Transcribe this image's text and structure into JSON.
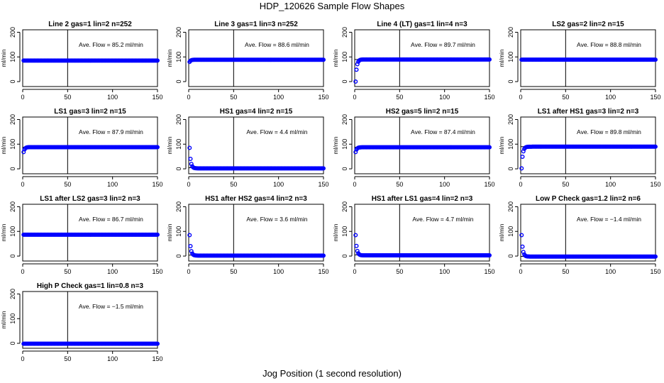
{
  "figure": {
    "title": "HDP_120626  Sample Flow Shapes",
    "xlabel": "Jog Position (1 second resolution)",
    "point_color": "#0000ff"
  },
  "chart_data": [
    {
      "type": "scatter",
      "title": "Line 2 gas=1 lin=2 n=252",
      "annotation": "Ave. Flow =  85.2  ml/min",
      "ylabel": "ml/min",
      "xlim": [
        0,
        150
      ],
      "ylim": [
        -20,
        210
      ],
      "xticks": [
        0,
        50,
        100,
        150
      ],
      "yticks": [
        0,
        100,
        200
      ],
      "vline": 50,
      "hline": 85.2,
      "shape": "flat",
      "level": 85.2,
      "start": 85.2
    },
    {
      "type": "scatter",
      "title": "Line 3 gas=1 lin=3 n=252",
      "annotation": "Ave. Flow =  88.6  ml/min",
      "ylabel": "ml/min",
      "xlim": [
        0,
        150
      ],
      "ylim": [
        -20,
        210
      ],
      "xticks": [
        0,
        50,
        100,
        150
      ],
      "yticks": [
        0,
        100,
        200
      ],
      "vline": 50,
      "hline": 88.6,
      "shape": "rise",
      "level": 88.6,
      "start": 80
    },
    {
      "type": "scatter",
      "title": "Line 4 (LT) gas=1 lin=4 n=3",
      "annotation": "Ave. Flow =  89.7  ml/min",
      "ylabel": "ml/min",
      "xlim": [
        0,
        150
      ],
      "ylim": [
        -20,
        210
      ],
      "xticks": [
        0,
        50,
        100,
        150
      ],
      "yticks": [
        0,
        100,
        200
      ],
      "vline": 50,
      "hline": 89.7,
      "shape": "rise",
      "level": 89.7,
      "start": 0
    },
    {
      "type": "scatter",
      "title": "LS2 gas=2 lin=2 n=15",
      "annotation": "Ave. Flow =  88.8  ml/min",
      "ylabel": "ml/min",
      "xlim": [
        0,
        150
      ],
      "ylim": [
        -20,
        210
      ],
      "xticks": [
        0,
        50,
        100,
        150
      ],
      "yticks": [
        0,
        100,
        200
      ],
      "vline": 50,
      "hline": 88.8,
      "shape": "flat",
      "level": 88.8,
      "start": 88.8
    },
    {
      "type": "scatter",
      "title": "LS1 gas=3 lin=2 n=15",
      "annotation": "Ave. Flow =  87.9  ml/min",
      "ylabel": "ml/min",
      "xlim": [
        0,
        150
      ],
      "ylim": [
        -20,
        210
      ],
      "xticks": [
        0,
        50,
        100,
        150
      ],
      "yticks": [
        0,
        100,
        200
      ],
      "vline": 50,
      "hline": 87.9,
      "shape": "rise",
      "level": 87.9,
      "start": 68
    },
    {
      "type": "scatter",
      "title": "HS1 gas=4 lin=2 n=15",
      "annotation": "Ave. Flow =  4.4  ml/min",
      "ylabel": "ml/min",
      "xlim": [
        0,
        150
      ],
      "ylim": [
        -20,
        210
      ],
      "xticks": [
        0,
        50,
        100,
        150
      ],
      "yticks": [
        0,
        100,
        200
      ],
      "vline": 50,
      "hline": 4.4,
      "shape": "decay",
      "level": 2,
      "start": 85
    },
    {
      "type": "scatter",
      "title": "HS2 gas=5 lin=2 n=15",
      "annotation": "Ave. Flow =  87.4  ml/min",
      "ylabel": "ml/min",
      "xlim": [
        0,
        150
      ],
      "ylim": [
        -20,
        210
      ],
      "xticks": [
        0,
        50,
        100,
        150
      ],
      "yticks": [
        0,
        100,
        200
      ],
      "vline": 50,
      "hline": 87.4,
      "shape": "rise",
      "level": 87.4,
      "start": 68
    },
    {
      "type": "scatter",
      "title": "LS1 after HS1 gas=3 lin=2 n=3",
      "annotation": "Ave. Flow =  89.8  ml/min",
      "ylabel": "ml/min",
      "xlim": [
        0,
        150
      ],
      "ylim": [
        -20,
        210
      ],
      "xticks": [
        0,
        50,
        100,
        150
      ],
      "yticks": [
        0,
        100,
        200
      ],
      "vline": 50,
      "hline": 89.8,
      "shape": "rise",
      "level": 89.8,
      "start": 2
    },
    {
      "type": "scatter",
      "title": "LS1 after LS2 gas=3 lin=2 n=3",
      "annotation": "Ave. Flow =  86.7  ml/min",
      "ylabel": "ml/min",
      "xlim": [
        0,
        150
      ],
      "ylim": [
        -20,
        210
      ],
      "xticks": [
        0,
        50,
        100,
        150
      ],
      "yticks": [
        0,
        100,
        200
      ],
      "vline": 50,
      "hline": 86.7,
      "shape": "flat",
      "level": 86.7,
      "start": 86.7
    },
    {
      "type": "scatter",
      "title": "HS1 after HS2 gas=4 lin=2 n=3",
      "annotation": "Ave. Flow =  3.6  ml/min",
      "ylabel": "ml/min",
      "xlim": [
        0,
        150
      ],
      "ylim": [
        -20,
        210
      ],
      "xticks": [
        0,
        50,
        100,
        150
      ],
      "yticks": [
        0,
        100,
        200
      ],
      "vline": 50,
      "hline": 3.6,
      "shape": "decay",
      "level": 2,
      "start": 85
    },
    {
      "type": "scatter",
      "title": "HS1 after LS1 gas=4 lin=2 n=3",
      "annotation": "Ave. Flow =  4.7  ml/min",
      "ylabel": "ml/min",
      "xlim": [
        0,
        150
      ],
      "ylim": [
        -20,
        210
      ],
      "xticks": [
        0,
        50,
        100,
        150
      ],
      "yticks": [
        0,
        100,
        200
      ],
      "vline": 50,
      "hline": 4.7,
      "shape": "decay",
      "level": 3,
      "start": 85
    },
    {
      "type": "scatter",
      "title": "Low P Check gas=1.2 lin=2 n=6",
      "annotation": "Ave. Flow =  −1.4  ml/min",
      "ylabel": "ml/min",
      "xlim": [
        0,
        150
      ],
      "ylim": [
        -20,
        210
      ],
      "xticks": [
        0,
        50,
        100,
        150
      ],
      "yticks": [
        0,
        100,
        200
      ],
      "vline": 50,
      "hline": -1.4,
      "shape": "decay",
      "level": -2,
      "start": 85
    },
    {
      "type": "scatter",
      "title": "High P Check gas=1 lin=0.8 n=3",
      "annotation": "Ave. Flow =  −1.5  ml/min",
      "ylabel": "ml/min",
      "xlim": [
        0,
        150
      ],
      "ylim": [
        -20,
        210
      ],
      "xticks": [
        0,
        50,
        100,
        150
      ],
      "yticks": [
        0,
        100,
        200
      ],
      "vline": 50,
      "hline": -1.5,
      "shape": "flat",
      "level": -1.5,
      "start": -1.5
    }
  ]
}
